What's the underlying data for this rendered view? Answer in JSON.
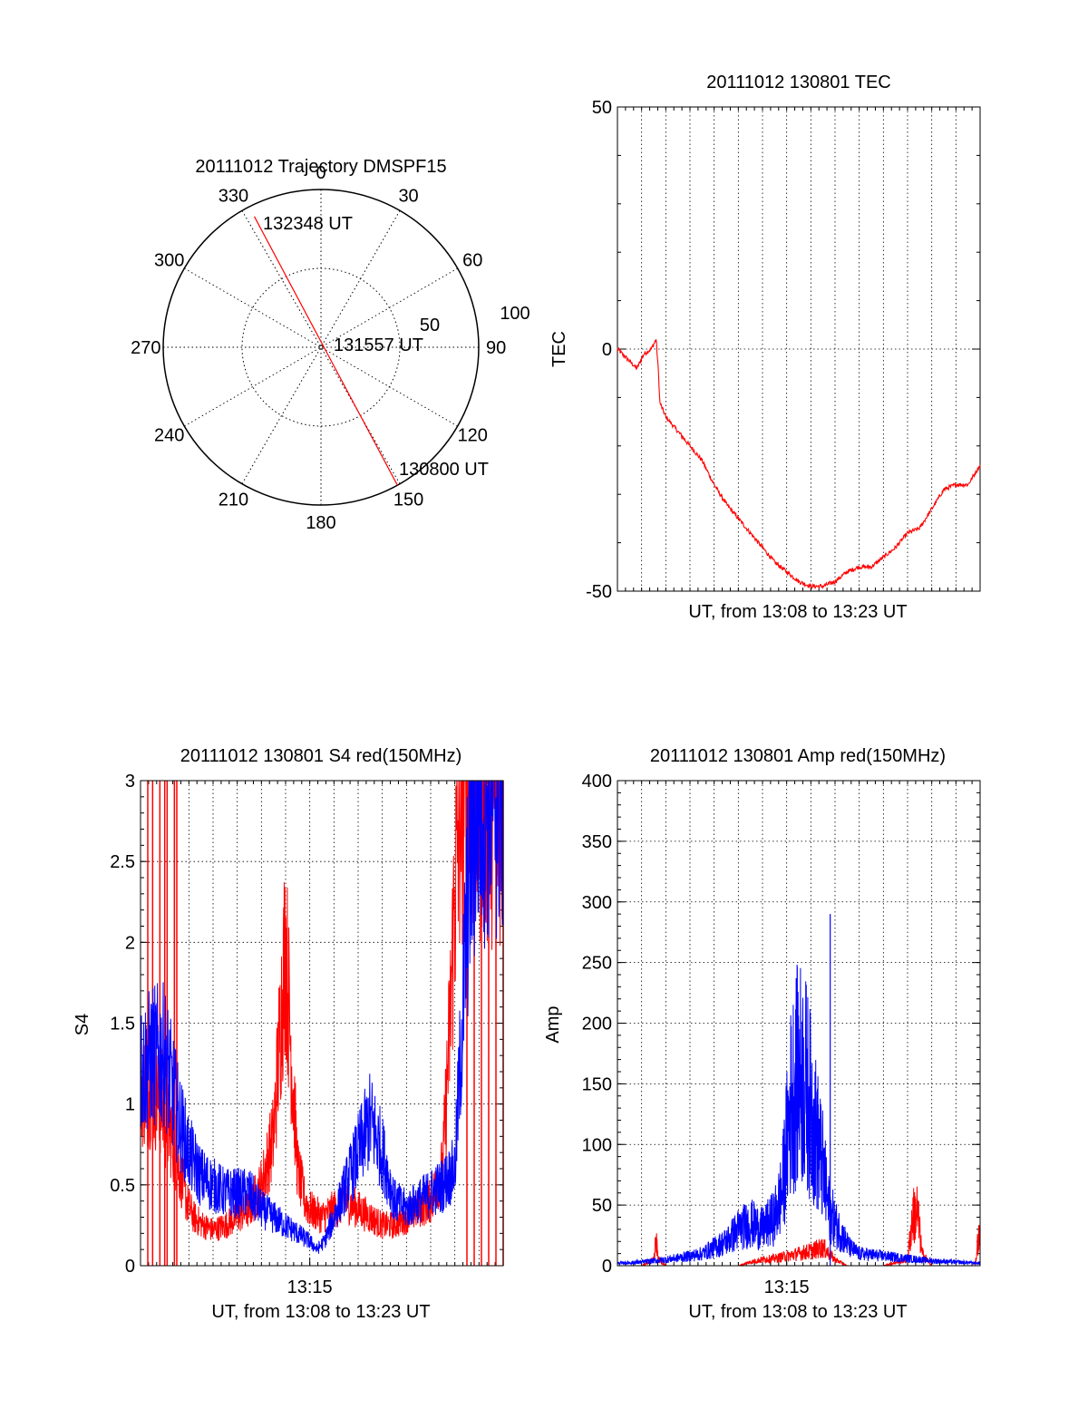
{
  "chart_data": [
    {
      "id": "polar",
      "type": "polar-line",
      "title": "20111012 Trajectory DMSPF15",
      "azimuth_labels": [
        "0",
        "30",
        "60",
        "90",
        "120",
        "150",
        "180",
        "210",
        "240",
        "270",
        "300",
        "330"
      ],
      "radial_rings": [
        50,
        100
      ],
      "radial_labels": [
        "50",
        "100"
      ],
      "trajectory": {
        "start_azimuth": 151,
        "start_radius": 100,
        "end_azimuth": 333,
        "end_radius": 93,
        "color": "#ff0000"
      },
      "annotations": [
        {
          "text": "132348 UT",
          "azimuth": 333,
          "radius": 93
        },
        {
          "text": "131557 UT",
          "azimuth": 0,
          "radius": 0
        },
        {
          "text": "130800 UT",
          "azimuth": 151,
          "radius": 100
        }
      ]
    },
    {
      "id": "tec",
      "type": "line",
      "title": "20111012 130801 TEC",
      "xlabel": "UT, from 13:08 to 13:23 UT",
      "ylabel": "TEC",
      "xlim": [
        0,
        15
      ],
      "ylim": [
        -50,
        50
      ],
      "yticks": [
        -50,
        0,
        50
      ],
      "grid": "vertical-dotted",
      "series": [
        {
          "color": "#ff0000",
          "x": [
            0,
            0.4,
            0.8,
            1.1,
            1.4,
            1.6,
            1.7,
            1.75,
            2.0,
            2.5,
            3.0,
            3.5,
            4.0,
            4.5,
            5.0,
            5.5,
            6.0,
            6.5,
            7.0,
            7.5,
            8.0,
            8.5,
            9.0,
            9.5,
            10.0,
            10.5,
            11.0,
            11.5,
            12.0,
            12.5,
            13.0,
            13.5,
            14.0,
            14.5,
            15.0
          ],
          "y": [
            0,
            -2,
            -4,
            -1,
            0,
            2,
            -5,
            -11,
            -14,
            -17,
            -20,
            -23,
            -28,
            -32,
            -35,
            -38,
            -41,
            -44,
            -46,
            -48,
            -49,
            -49,
            -48,
            -46,
            -45,
            -45,
            -43,
            -41,
            -38,
            -37,
            -33,
            -29,
            -28,
            -28,
            -24
          ]
        }
      ]
    },
    {
      "id": "s4",
      "type": "line",
      "title": "20111012 130801 S4 red(150MHz)",
      "xlabel": "UT, from 13:08 to 13:23 UT",
      "ylabel": "S4",
      "xlim": [
        0,
        15
      ],
      "ylim": [
        0,
        3
      ],
      "yticks": [
        0,
        0.5,
        1,
        1.5,
        2,
        2.5,
        3
      ],
      "ytick_labels": [
        "0",
        "0.5",
        "1",
        "1.5",
        "2",
        "2.5",
        "3"
      ],
      "xtick_value": 7,
      "xtick_label": "13:15",
      "grid": "dotted",
      "series": [
        {
          "color": "#ff0000",
          "x": [
            0,
            0.5,
            0.9,
            1.0,
            1.3,
            1.6,
            1.9,
            2.2,
            2.6,
            3.0,
            3.5,
            4.0,
            4.5,
            5.0,
            5.5,
            6.0,
            6.2,
            6.5,
            6.8,
            7.0,
            7.5,
            8.0,
            8.5,
            9.0,
            9.5,
            10.0,
            10.5,
            11.0,
            11.5,
            12.0,
            12.5,
            12.8,
            13.0,
            13.3,
            13.6,
            14.0,
            14.5,
            15.0
          ],
          "y": [
            1.1,
            1.1,
            1.0,
            0.9,
            0.8,
            0.6,
            0.4,
            0.3,
            0.25,
            0.22,
            0.25,
            0.3,
            0.35,
            0.5,
            0.8,
            2.0,
            1.4,
            0.6,
            0.4,
            0.35,
            0.3,
            0.35,
            0.4,
            0.35,
            0.3,
            0.25,
            0.25,
            0.3,
            0.35,
            0.4,
            0.6,
            1.5,
            2.3,
            3.0,
            3.0,
            3.0,
            3.0,
            3.0
          ],
          "spikes_x": [
            0.3,
            0.5,
            0.8,
            1.0,
            1.1,
            1.4,
            1.5,
            13.5,
            13.8,
            14.1,
            14.4,
            14.7,
            15.0
          ]
        },
        {
          "color": "#0000ff",
          "x": [
            0,
            0.5,
            1.0,
            1.3,
            1.6,
            2.0,
            2.5,
            3.0,
            3.5,
            4.0,
            4.5,
            5.0,
            5.5,
            6.0,
            6.5,
            7.0,
            7.3,
            7.6,
            8.0,
            8.5,
            9.0,
            9.5,
            10.0,
            10.5,
            11.0,
            11.5,
            12.0,
            12.5,
            13.0,
            13.3,
            13.6,
            14.0,
            14.5,
            15.0
          ],
          "y": [
            1.2,
            1.3,
            1.3,
            1.1,
            0.9,
            0.7,
            0.55,
            0.5,
            0.45,
            0.45,
            0.45,
            0.35,
            0.3,
            0.25,
            0.2,
            0.15,
            0.1,
            0.15,
            0.3,
            0.5,
            0.7,
            0.9,
            0.7,
            0.4,
            0.35,
            0.4,
            0.45,
            0.5,
            0.6,
            1.5,
            2.5,
            3.0,
            3.0,
            3.0
          ]
        }
      ]
    },
    {
      "id": "amp",
      "type": "line",
      "title": "20111012 130801 Amp red(150MHz)",
      "xlabel": "UT, from 13:08 to 13:23 UT",
      "ylabel": "Amp",
      "xlim": [
        0,
        15
      ],
      "ylim": [
        0,
        400
      ],
      "yticks": [
        0,
        50,
        100,
        150,
        200,
        250,
        300,
        350,
        400
      ],
      "ytick_labels": [
        "0",
        "50",
        "100",
        "150",
        "200",
        "250",
        "300",
        "350",
        "400"
      ],
      "xtick_value": 7,
      "xtick_label": "13:15",
      "grid": "dotted",
      "series": [
        {
          "color": "#ff0000",
          "x": [
            0,
            1,
            1.5,
            1.6,
            1.7,
            2,
            3,
            4,
            5,
            5.5,
            6,
            6.5,
            7,
            7.5,
            8,
            8.5,
            9,
            9.5,
            10,
            11,
            12,
            12.2,
            12.4,
            12.6,
            13,
            14,
            14.8,
            14.9,
            15.0
          ],
          "y": [
            0,
            0,
            5,
            20,
            5,
            0,
            0,
            0,
            0,
            3,
            5,
            6,
            8,
            10,
            12,
            15,
            5,
            0,
            0,
            0,
            5,
            40,
            45,
            10,
            0,
            0,
            0,
            20,
            25
          ]
        },
        {
          "color": "#0000ff",
          "x": [
            0,
            1,
            2,
            3,
            3.5,
            4,
            4.5,
            5,
            5.5,
            6,
            6.5,
            6.8,
            7.0,
            7.2,
            7.5,
            7.8,
            8.0,
            8.3,
            8.5,
            8.7,
            9.0,
            9.3,
            9.6,
            10,
            11,
            12,
            13,
            14,
            15
          ],
          "y": [
            2,
            3,
            5,
            8,
            10,
            15,
            20,
            30,
            35,
            30,
            40,
            60,
            100,
            140,
            160,
            150,
            130,
            100,
            80,
            50,
            35,
            25,
            15,
            10,
            8,
            6,
            4,
            3,
            2
          ],
          "spike": {
            "x": 8.8,
            "y": 290
          }
        }
      ]
    }
  ]
}
